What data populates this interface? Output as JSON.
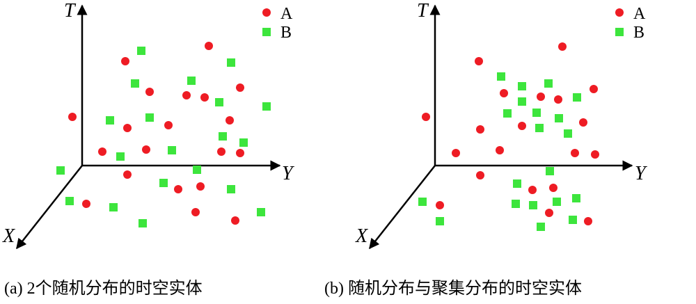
{
  "panels": [
    {
      "axes": {
        "t": "T",
        "y": "Y",
        "x": "X"
      },
      "legend": [
        "A",
        "B"
      ],
      "caption": "(a) 2个随机分布的时空实体"
    },
    {
      "axes": {
        "t": "T",
        "y": "Y",
        "x": "X"
      },
      "legend": [
        "A",
        "B"
      ],
      "caption": "(b) 随机分布与聚集分布的时空实体"
    }
  ]
}
